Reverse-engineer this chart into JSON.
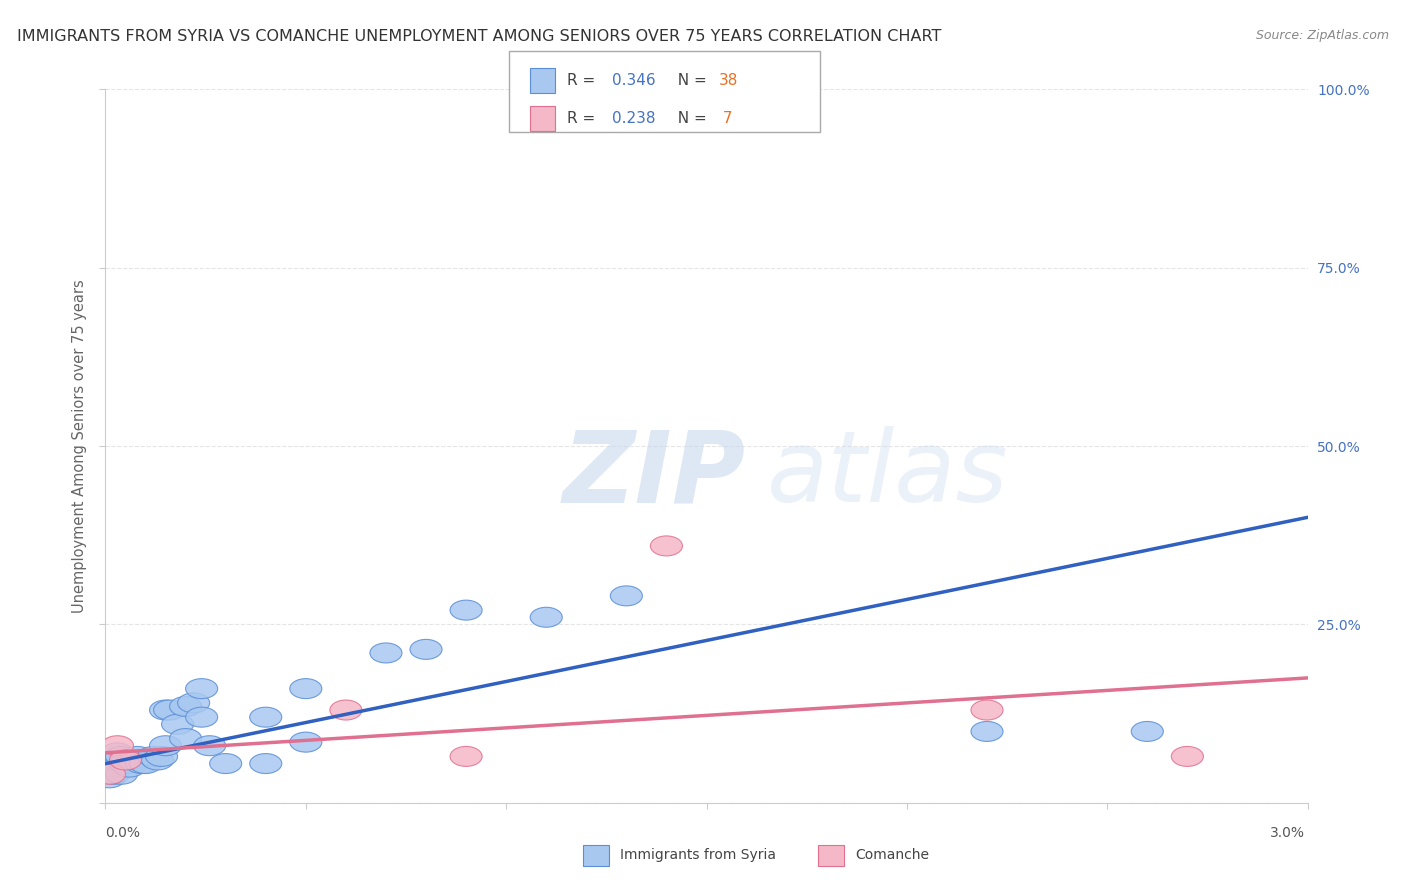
{
  "title": "IMMIGRANTS FROM SYRIA VS COMANCHE UNEMPLOYMENT AMONG SENIORS OVER 75 YEARS CORRELATION CHART",
  "source": "Source: ZipAtlas.com",
  "ylabel": "Unemployment Among Seniors over 75 years",
  "ytick_values": [
    0.0,
    0.25,
    0.5,
    0.75,
    1.0
  ],
  "ytick_labels_right": [
    "",
    "25.0%",
    "50.0%",
    "75.0%",
    "100.0%"
  ],
  "xlim": [
    0.0,
    0.03
  ],
  "ylim": [
    0.0,
    1.0
  ],
  "watermark_zip": "ZIP",
  "watermark_atlas": "atlas",
  "syria_color": "#A8C8F0",
  "syria_edge_color": "#5B8ED6",
  "comanche_color": "#F5B8C8",
  "comanche_edge_color": "#E07090",
  "syria_line_color": "#3060C0",
  "comanche_line_color": "#E07090",
  "syria_scatter_x": [
    0.0001,
    0.0002,
    0.0002,
    0.0003,
    0.0003,
    0.0004,
    0.0004,
    0.0005,
    0.0006,
    0.0007,
    0.0008,
    0.0009,
    0.001,
    0.0012,
    0.0013,
    0.0014,
    0.0015,
    0.0015,
    0.0016,
    0.0018,
    0.002,
    0.002,
    0.0022,
    0.0024,
    0.0024,
    0.0026,
    0.003,
    0.004,
    0.004,
    0.005,
    0.005,
    0.007,
    0.008,
    0.009,
    0.011,
    0.013,
    0.022,
    0.026
  ],
  "syria_scatter_y": [
    0.035,
    0.04,
    0.06,
    0.05,
    0.07,
    0.04,
    0.065,
    0.055,
    0.05,
    0.06,
    0.065,
    0.055,
    0.055,
    0.065,
    0.06,
    0.065,
    0.08,
    0.13,
    0.13,
    0.11,
    0.09,
    0.135,
    0.14,
    0.12,
    0.16,
    0.08,
    0.055,
    0.055,
    0.12,
    0.085,
    0.16,
    0.21,
    0.215,
    0.27,
    0.26,
    0.29,
    0.1,
    0.1
  ],
  "comanche_scatter_x": [
    0.0001,
    0.0003,
    0.0005,
    0.006,
    0.009,
    0.014,
    0.022,
    0.027
  ],
  "comanche_scatter_y": [
    0.04,
    0.08,
    0.06,
    0.13,
    0.065,
    0.36,
    0.13,
    0.065
  ],
  "syria_trend_x": [
    0.0,
    0.03
  ],
  "syria_trend_y": [
    0.055,
    0.4
  ],
  "comanche_trend_x": [
    0.0,
    0.03
  ],
  "comanche_trend_y": [
    0.07,
    0.175
  ],
  "background_color": "#FFFFFF",
  "grid_color": "#E5E5E5",
  "axis_color": "#CCCCCC"
}
